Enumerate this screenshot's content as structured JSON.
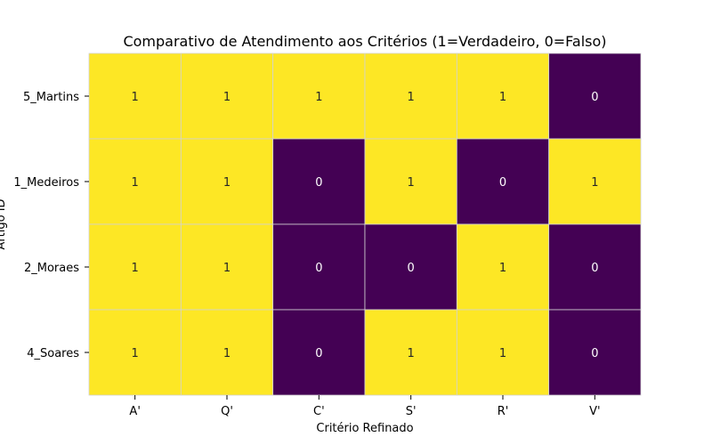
{
  "chart_data": {
    "type": "heatmap",
    "title": "Comparativo de Atendimento aos Critérios (1=Verdadeiro, 0=Falso)",
    "xlabel": "Critério Refinado",
    "ylabel": "Artigo ID",
    "x_categories": [
      "A'",
      "Q'",
      "C'",
      "S'",
      "R'",
      "V'"
    ],
    "y_categories": [
      "5_Martins",
      "1_Medeiros",
      "2_Moraes",
      "4_Soares"
    ],
    "values": [
      [
        1,
        1,
        1,
        1,
        1,
        0
      ],
      [
        1,
        1,
        0,
        1,
        0,
        1
      ],
      [
        1,
        1,
        0,
        0,
        1,
        0
      ],
      [
        1,
        1,
        0,
        1,
        1,
        0
      ]
    ],
    "value_range": [
      0,
      1
    ],
    "colors": {
      "high": "#fde725",
      "low": "#440154",
      "grid": "#d3d3d3"
    },
    "cell_annotations": true,
    "colorbar": false
  }
}
